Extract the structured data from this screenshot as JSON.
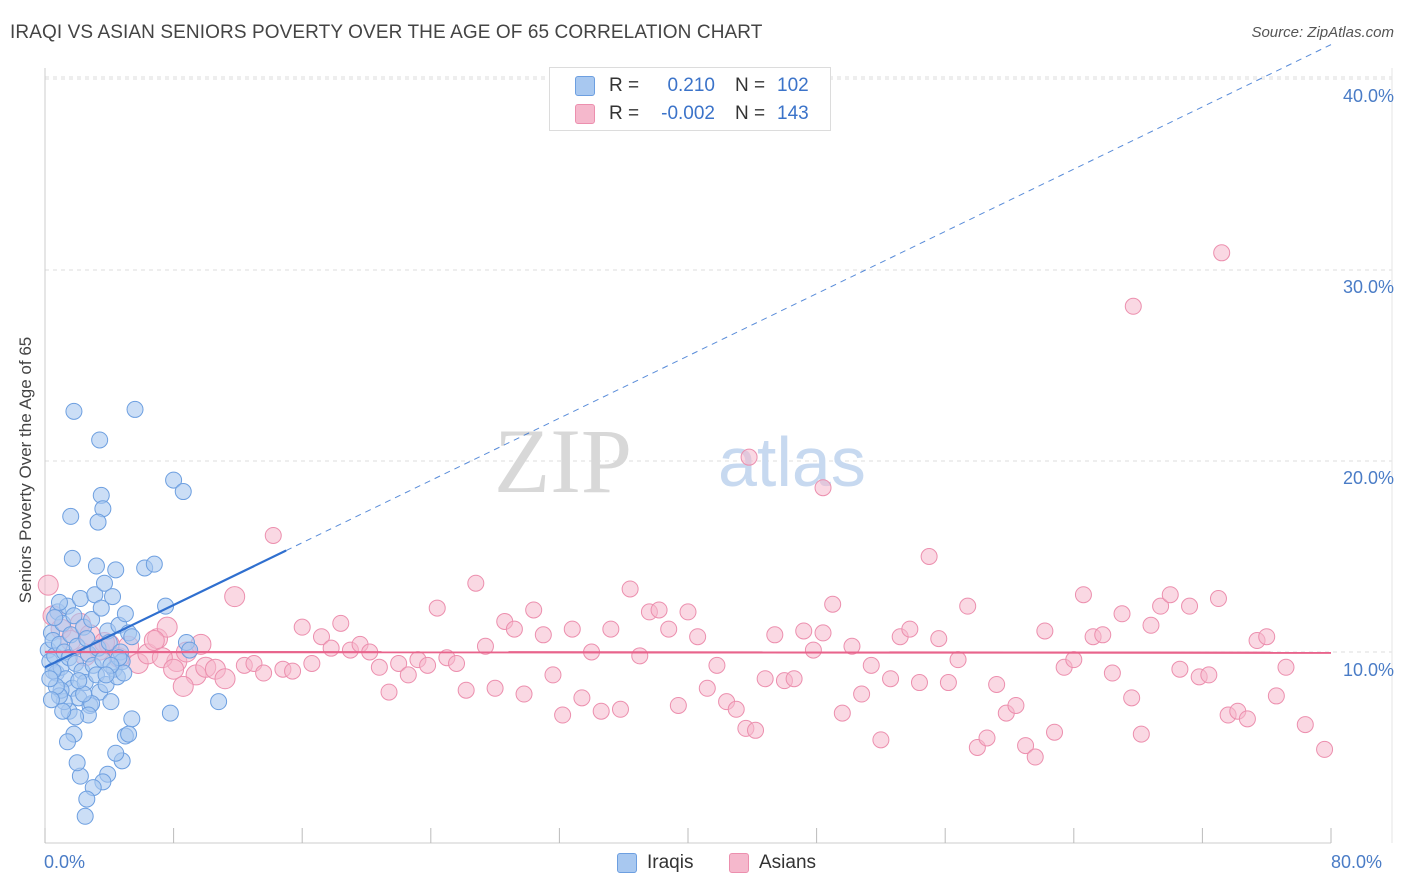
{
  "title": "IRAQI VS ASIAN SENIORS POVERTY OVER THE AGE OF 65 CORRELATION CHART",
  "source": "Source: ZipAtlas.com",
  "watermark": {
    "zip": "ZIP",
    "atlas": "atlas"
  },
  "legend": {
    "r_label": "R =",
    "n_label": "N =",
    "iraqis": {
      "r": "0.210",
      "n": "102"
    },
    "asians": {
      "r": "-0.002",
      "n": "143"
    }
  },
  "bottom_legend": {
    "iraqis": "Iraqis",
    "asians": "Asians"
  },
  "colors": {
    "iraqis_fill": "#a8c8f0",
    "iraqis_stroke": "#6d9fe0",
    "iraqis_line": "#2f6fcf",
    "asians_fill": "#f5b8cc",
    "asians_stroke": "#ec8fae",
    "asians_line": "#e8648c",
    "tick_text": "#4a7cc6",
    "grid": "#dddddd"
  },
  "chart_data": {
    "type": "scatter",
    "title": "IRAQI VS ASIAN SENIORS POVERTY OVER THE AGE OF 65 CORRELATION CHART",
    "xlabel": "",
    "ylabel": "Seniors Poverty Over the Age of 65",
    "xlim": [
      0,
      80
    ],
    "ylim": [
      0,
      40
    ],
    "x_tick_labels": [
      "0.0%",
      "80.0%"
    ],
    "y_tick_labels": [
      "10.0%",
      "20.0%",
      "30.0%",
      "40.0%"
    ],
    "y_ticks": [
      10,
      20,
      30,
      40
    ],
    "series": [
      {
        "name": "Iraqis",
        "r": 0.21,
        "n": 102,
        "trend": {
          "x0": 0,
          "y0": 9.2,
          "x1": 80,
          "y1": 41.8,
          "solid_until_x": 15
        },
        "points": [
          [
            0.2,
            10.1
          ],
          [
            0.3,
            9.5
          ],
          [
            0.4,
            11.0
          ],
          [
            0.5,
            10.6
          ],
          [
            0.6,
            9.8
          ],
          [
            0.7,
            8.9
          ],
          [
            0.8,
            12.1
          ],
          [
            0.9,
            10.4
          ],
          [
            1.0,
            9.2
          ],
          [
            1.1,
            11.5
          ],
          [
            1.2,
            10.0
          ],
          [
            1.3,
            8.6
          ],
          [
            1.4,
            12.4
          ],
          [
            1.5,
            9.7
          ],
          [
            1.6,
            10.9
          ],
          [
            1.7,
            8.1
          ],
          [
            1.8,
            11.9
          ],
          [
            1.9,
            9.4
          ],
          [
            2.0,
            10.3
          ],
          [
            2.1,
            7.6
          ],
          [
            2.2,
            12.8
          ],
          [
            2.3,
            9.0
          ],
          [
            2.4,
            11.3
          ],
          [
            2.5,
            8.4
          ],
          [
            2.6,
            10.7
          ],
          [
            2.7,
            9.9
          ],
          [
            2.8,
            7.2
          ],
          [
            2.9,
            11.7
          ],
          [
            3.0,
            9.3
          ],
          [
            3.1,
            13.0
          ],
          [
            3.2,
            8.8
          ],
          [
            3.3,
            10.2
          ],
          [
            3.4,
            7.9
          ],
          [
            3.5,
            12.3
          ],
          [
            3.6,
            9.6
          ],
          [
            3.7,
            13.6
          ],
          [
            3.8,
            8.3
          ],
          [
            3.9,
            11.1
          ],
          [
            4.0,
            10.5
          ],
          [
            4.1,
            7.4
          ],
          [
            4.2,
            12.9
          ],
          [
            4.3,
            9.1
          ],
          [
            4.4,
            14.3
          ],
          [
            4.5,
            8.7
          ],
          [
            4.6,
            11.4
          ],
          [
            4.7,
            10.0
          ],
          [
            4.8,
            9.5
          ],
          [
            5.0,
            12.0
          ],
          [
            5.2,
            11.0
          ],
          [
            5.4,
            10.8
          ],
          [
            5.0,
            5.6
          ],
          [
            4.8,
            4.3
          ],
          [
            4.4,
            4.7
          ],
          [
            3.9,
            3.6
          ],
          [
            3.6,
            3.2
          ],
          [
            3.0,
            2.9
          ],
          [
            2.6,
            2.3
          ],
          [
            2.5,
            1.4
          ],
          [
            2.2,
            3.5
          ],
          [
            2.0,
            4.2
          ],
          [
            1.8,
            5.7
          ],
          [
            1.5,
            6.9
          ],
          [
            1.2,
            7.4
          ],
          [
            1.0,
            8.0
          ],
          [
            1.6,
            17.1
          ],
          [
            1.7,
            14.9
          ],
          [
            1.8,
            22.6
          ],
          [
            3.5,
            18.2
          ],
          [
            3.6,
            17.5
          ],
          [
            3.4,
            21.1
          ],
          [
            3.3,
            16.8
          ],
          [
            3.2,
            14.5
          ],
          [
            5.6,
            22.7
          ],
          [
            6.2,
            14.4
          ],
          [
            6.8,
            14.6
          ],
          [
            7.5,
            12.4
          ],
          [
            8.0,
            19.0
          ],
          [
            8.6,
            18.4
          ],
          [
            8.8,
            10.5
          ],
          [
            9.0,
            10.1
          ],
          [
            10.8,
            7.4
          ],
          [
            7.8,
            6.8
          ],
          [
            5.4,
            6.5
          ],
          [
            5.2,
            5.7
          ],
          [
            4.9,
            8.9
          ],
          [
            4.6,
            9.7
          ],
          [
            4.1,
            9.3
          ],
          [
            3.8,
            8.8
          ],
          [
            2.9,
            7.3
          ],
          [
            2.7,
            6.7
          ],
          [
            2.4,
            7.8
          ],
          [
            2.1,
            8.5
          ],
          [
            1.9,
            6.6
          ],
          [
            1.4,
            5.3
          ],
          [
            1.1,
            6.9
          ],
          [
            0.9,
            7.7
          ],
          [
            0.7,
            8.2
          ],
          [
            0.5,
            9.0
          ],
          [
            0.4,
            7.5
          ],
          [
            0.3,
            8.6
          ],
          [
            0.6,
            11.8
          ],
          [
            0.9,
            12.6
          ]
        ]
      },
      {
        "name": "Asians",
        "r": -0.002,
        "n": 143,
        "trend": {
          "x0": 0,
          "y0": 10.0,
          "x1": 80,
          "y1": 9.96
        },
        "points": [
          [
            0.2,
            13.5
          ],
          [
            0.5,
            11.9
          ],
          [
            1.0,
            11.2
          ],
          [
            1.6,
            10.6
          ],
          [
            2.2,
            11.5
          ],
          [
            2.8,
            10.9
          ],
          [
            3.4,
            10.1
          ],
          [
            4.0,
            10.4
          ],
          [
            4.6,
            9.7
          ],
          [
            5.2,
            10.3
          ],
          [
            5.8,
            9.4
          ],
          [
            6.4,
            9.9
          ],
          [
            7.0,
            10.7
          ],
          [
            7.6,
            11.3
          ],
          [
            8.2,
            9.5
          ],
          [
            8.8,
            10.0
          ],
          [
            9.4,
            8.8
          ],
          [
            10.0,
            9.2
          ],
          [
            10.6,
            9.1
          ],
          [
            11.2,
            8.6
          ],
          [
            11.8,
            12.9
          ],
          [
            12.4,
            9.3
          ],
          [
            13.0,
            9.4
          ],
          [
            13.6,
            8.9
          ],
          [
            14.2,
            16.1
          ],
          [
            14.8,
            9.1
          ],
          [
            15.4,
            9.0
          ],
          [
            16.0,
            11.3
          ],
          [
            16.6,
            9.4
          ],
          [
            17.2,
            10.8
          ],
          [
            17.8,
            10.2
          ],
          [
            18.4,
            11.5
          ],
          [
            19.0,
            10.1
          ],
          [
            19.6,
            10.4
          ],
          [
            20.2,
            10.0
          ],
          [
            20.8,
            9.2
          ],
          [
            21.4,
            7.9
          ],
          [
            22.0,
            9.4
          ],
          [
            22.6,
            8.8
          ],
          [
            23.2,
            9.6
          ],
          [
            23.8,
            9.3
          ],
          [
            24.4,
            12.3
          ],
          [
            25.0,
            9.7
          ],
          [
            25.6,
            9.4
          ],
          [
            26.2,
            8.0
          ],
          [
            26.8,
            13.6
          ],
          [
            27.4,
            10.3
          ],
          [
            28.0,
            8.1
          ],
          [
            28.6,
            11.6
          ],
          [
            29.2,
            11.2
          ],
          [
            29.8,
            7.8
          ],
          [
            30.4,
            12.2
          ],
          [
            31.0,
            10.9
          ],
          [
            31.6,
            8.8
          ],
          [
            32.2,
            6.7
          ],
          [
            32.8,
            11.2
          ],
          [
            33.4,
            7.6
          ],
          [
            34.0,
            10.0
          ],
          [
            34.6,
            6.9
          ],
          [
            35.2,
            11.2
          ],
          [
            35.8,
            7.0
          ],
          [
            36.4,
            13.3
          ],
          [
            37.0,
            9.8
          ],
          [
            37.6,
            12.1
          ],
          [
            38.2,
            12.2
          ],
          [
            38.8,
            11.2
          ],
          [
            39.4,
            7.2
          ],
          [
            40.0,
            12.1
          ],
          [
            40.6,
            10.8
          ],
          [
            41.2,
            8.1
          ],
          [
            41.8,
            9.3
          ],
          [
            42.4,
            7.4
          ],
          [
            43.0,
            7.0
          ],
          [
            43.6,
            6.0
          ],
          [
            44.2,
            5.9
          ],
          [
            43.8,
            20.2
          ],
          [
            44.8,
            8.6
          ],
          [
            45.4,
            10.9
          ],
          [
            46.0,
            8.5
          ],
          [
            46.6,
            8.6
          ],
          [
            47.2,
            11.1
          ],
          [
            47.8,
            10.1
          ],
          [
            48.4,
            11.0
          ],
          [
            48.4,
            18.6
          ],
          [
            49.0,
            12.5
          ],
          [
            49.6,
            6.8
          ],
          [
            50.2,
            10.3
          ],
          [
            50.8,
            7.8
          ],
          [
            51.4,
            9.3
          ],
          [
            52.0,
            5.4
          ],
          [
            52.6,
            8.6
          ],
          [
            53.2,
            10.8
          ],
          [
            53.8,
            11.2
          ],
          [
            54.4,
            8.4
          ],
          [
            55.0,
            15.0
          ],
          [
            55.6,
            10.7
          ],
          [
            56.2,
            8.4
          ],
          [
            56.8,
            9.6
          ],
          [
            57.4,
            12.4
          ],
          [
            58.0,
            5.0
          ],
          [
            58.6,
            5.5
          ],
          [
            59.2,
            8.3
          ],
          [
            59.8,
            6.8
          ],
          [
            60.4,
            7.2
          ],
          [
            61.0,
            5.1
          ],
          [
            61.6,
            4.5
          ],
          [
            62.2,
            11.1
          ],
          [
            62.8,
            5.8
          ],
          [
            63.4,
            9.2
          ],
          [
            64.0,
            9.6
          ],
          [
            64.6,
            13.0
          ],
          [
            65.2,
            10.8
          ],
          [
            65.8,
            10.9
          ],
          [
            66.4,
            8.9
          ],
          [
            67.0,
            12.0
          ],
          [
            67.6,
            7.6
          ],
          [
            68.2,
            5.7
          ],
          [
            68.8,
            11.4
          ],
          [
            69.4,
            12.4
          ],
          [
            70.0,
            13.0
          ],
          [
            70.6,
            9.1
          ],
          [
            71.2,
            12.4
          ],
          [
            71.8,
            8.7
          ],
          [
            72.4,
            8.8
          ],
          [
            73.0,
            12.8
          ],
          [
            73.6,
            6.7
          ],
          [
            74.2,
            6.9
          ],
          [
            74.8,
            6.5
          ],
          [
            75.4,
            10.6
          ],
          [
            76.0,
            10.8
          ],
          [
            76.6,
            7.7
          ],
          [
            77.2,
            9.2
          ],
          [
            78.4,
            6.2
          ],
          [
            79.6,
            4.9
          ],
          [
            67.7,
            28.1
          ],
          [
            73.2,
            30.9
          ],
          [
            6.8,
            10.6
          ],
          [
            7.3,
            9.7
          ],
          [
            8.0,
            9.1
          ],
          [
            8.6,
            8.2
          ],
          [
            9.7,
            10.4
          ],
          [
            3.7,
            10.5
          ],
          [
            2.5,
            9.8
          ]
        ]
      }
    ]
  }
}
